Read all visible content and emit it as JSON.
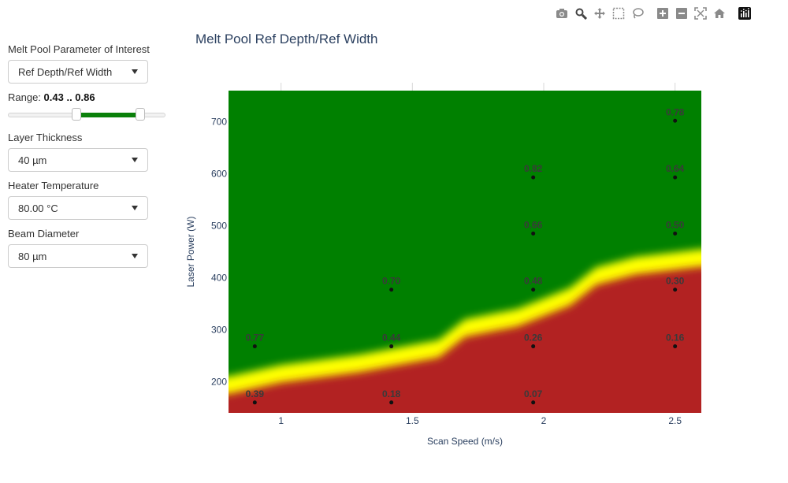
{
  "sidebar": {
    "param_label": "Melt Pool Parameter of Interest",
    "param_value": "Ref Depth/Ref Width",
    "range_label": "Range:",
    "range_value": "0.43 .. 0.86",
    "range_min": 0.43,
    "range_max": 0.86,
    "layer_label": "Layer Thickness",
    "layer_value": "40 µm",
    "heater_label": "Heater Temperature",
    "heater_value": "80.00 °C",
    "beam_label": "Beam Diameter",
    "beam_value": "80 µm"
  },
  "modebar": [
    "camera-icon",
    "zoom-icon",
    "pan-icon",
    "box-select-icon",
    "lasso-select-icon",
    "zoom-in-icon",
    "zoom-out-icon",
    "autoscale-icon",
    "reset-axes-icon",
    "plotly-logo-icon"
  ],
  "colors": {
    "green": "#008000",
    "yellow": "#ffff00",
    "red": "#b22222",
    "axis_text": "#2a3f5f"
  },
  "chart_data": {
    "type": "heatmap",
    "title": "Melt Pool Ref Depth/Ref Width",
    "xlabel": "Scan Speed (m/s)",
    "ylabel": "Laser Power (W)",
    "xlim": [
      0.8,
      2.6
    ],
    "ylim": [
      140,
      760
    ],
    "xticks": [
      1,
      1.5,
      2,
      2.5
    ],
    "xtick_labels": [
      "1",
      "1.5",
      "2",
      "2.5"
    ],
    "yticks": [
      200,
      300,
      400,
      500,
      600,
      700
    ],
    "ytick_labels": [
      "200",
      "300",
      "400",
      "500",
      "600",
      "700"
    ],
    "colorscale": "green above 0.86, yellow within 0.43–0.86, red below 0.43",
    "boundary": [
      {
        "x": 0.8,
        "y": 210
      },
      {
        "x": 1.0,
        "y": 232
      },
      {
        "x": 1.3,
        "y": 252
      },
      {
        "x": 1.6,
        "y": 280
      },
      {
        "x": 1.7,
        "y": 320
      },
      {
        "x": 1.9,
        "y": 340
      },
      {
        "x": 2.1,
        "y": 380
      },
      {
        "x": 2.2,
        "y": 420
      },
      {
        "x": 2.35,
        "y": 440
      },
      {
        "x": 2.6,
        "y": 455
      }
    ],
    "points": [
      {
        "x": 0.9,
        "y": 160,
        "label": "0.39"
      },
      {
        "x": 0.9,
        "y": 268,
        "label": "0.77"
      },
      {
        "x": 1.42,
        "y": 160,
        "label": "0.18"
      },
      {
        "x": 1.42,
        "y": 268,
        "label": "0.44"
      },
      {
        "x": 1.42,
        "y": 377,
        "label": "0.70"
      },
      {
        "x": 1.96,
        "y": 160,
        "label": "0.07"
      },
      {
        "x": 1.96,
        "y": 268,
        "label": "0.26"
      },
      {
        "x": 1.96,
        "y": 377,
        "label": "0.48"
      },
      {
        "x": 1.96,
        "y": 485,
        "label": "0.66"
      },
      {
        "x": 1.96,
        "y": 593,
        "label": "0.82"
      },
      {
        "x": 2.5,
        "y": 268,
        "label": "0.16"
      },
      {
        "x": 2.5,
        "y": 377,
        "label": "0.30"
      },
      {
        "x": 2.5,
        "y": 485,
        "label": "0.50"
      },
      {
        "x": 2.5,
        "y": 593,
        "label": "0.64"
      },
      {
        "x": 2.5,
        "y": 702,
        "label": "0.78"
      }
    ]
  }
}
